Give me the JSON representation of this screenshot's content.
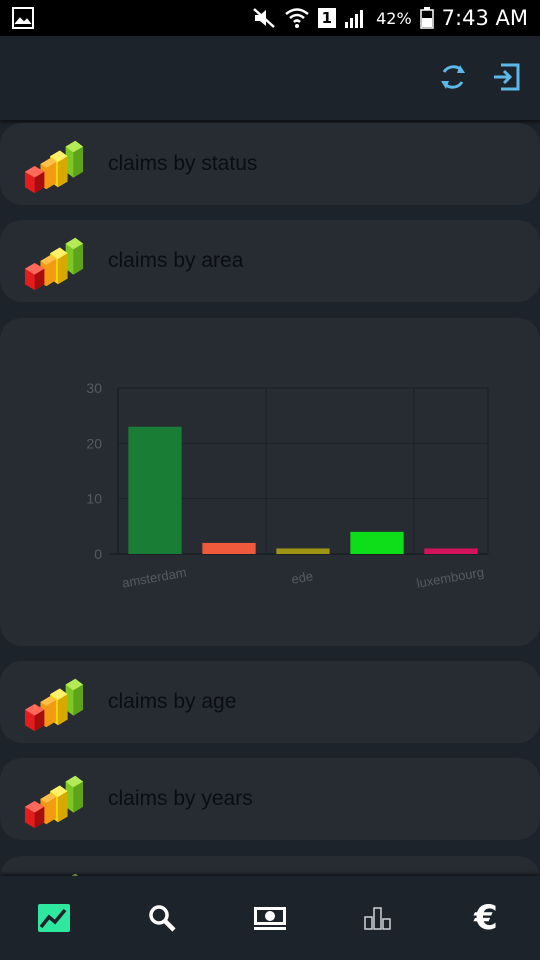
{
  "status_bar": {
    "signal_number": "1",
    "battery_percent": "42%",
    "time": "7:43 AM",
    "icons": [
      "gallery-icon",
      "mute-icon",
      "wifi-icon",
      "signal-icon",
      "battery-icon"
    ]
  },
  "header": {
    "icons": [
      "refresh-icon",
      "logout-icon"
    ],
    "accent_color": "#5bb8e8"
  },
  "cards": [
    {
      "label": "claims by status",
      "icon": "bar-chart-3d-icon"
    },
    {
      "label": "claims by area",
      "icon": "bar-chart-3d-icon"
    },
    {
      "label": "claims by age",
      "icon": "bar-chart-3d-icon"
    },
    {
      "label": "claims by years",
      "icon": "bar-chart-3d-icon"
    }
  ],
  "chart_data": {
    "type": "bar",
    "categories": [
      "amsterdam",
      "",
      "ede",
      "",
      "luxembourg"
    ],
    "values": [
      23,
      2,
      1,
      4,
      1
    ],
    "colors": [
      "#1a7d35",
      "#f05a3c",
      "#9c9412",
      "#0edd1a",
      "#d4145a"
    ],
    "ylim": [
      0,
      30
    ],
    "yticks": [
      0,
      10,
      20,
      30
    ],
    "grid": true,
    "title": "",
    "xlabel": "",
    "ylabel": ""
  },
  "bottom_nav": {
    "items": [
      {
        "icon": "line-chart-icon",
        "active": true,
        "color": "#2ee8a0"
      },
      {
        "icon": "search-icon",
        "active": false
      },
      {
        "icon": "money-icon",
        "active": false
      },
      {
        "icon": "bar-chart-icon",
        "active": false
      },
      {
        "icon": "euro-icon",
        "glyph": "€",
        "active": false
      }
    ]
  }
}
